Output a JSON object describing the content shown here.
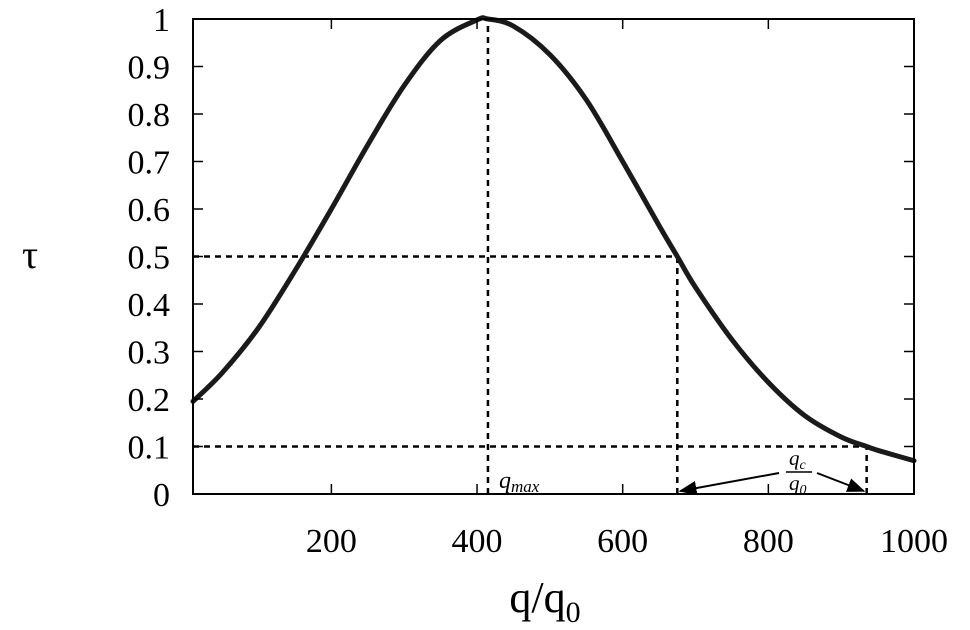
{
  "chart_data": {
    "type": "line",
    "title": "",
    "xlabel": "q/q",
    "xlabel_sub": "0",
    "ylabel": "τ",
    "xlim": [
      10,
      1000
    ],
    "ylim": [
      0,
      1
    ],
    "x_ticks": [
      "200",
      "400",
      "600",
      "800",
      "1000"
    ],
    "y_ticks": [
      "0",
      "0.1",
      "0.2",
      "0.3",
      "0.4",
      "0.5",
      "0.6",
      "0.7",
      "0.8",
      "0.9",
      "1"
    ],
    "grid": false,
    "legend": "none",
    "series": [
      {
        "x": [
          10,
          50,
          100,
          150,
          200,
          250,
          300,
          350,
          400,
          415,
          450,
          500,
          550,
          600,
          650,
          675,
          700,
          750,
          800,
          850,
          900,
          935,
          950,
          1000
        ],
        "y": [
          0.195,
          0.255,
          0.35,
          0.47,
          0.6,
          0.735,
          0.86,
          0.955,
          0.998,
          1.0,
          0.985,
          0.925,
          0.83,
          0.7,
          0.565,
          0.5,
          0.435,
          0.325,
          0.235,
          0.165,
          0.12,
          0.1,
          0.092,
          0.07
        ]
      }
    ],
    "reference_lines": [
      {
        "kind": "vertical",
        "x": 415,
        "y_from": 0,
        "y_to": 1.0
      },
      {
        "kind": "horizontal",
        "y": 0.5,
        "x_from": 10,
        "x_to": 675
      },
      {
        "kind": "vertical",
        "x": 675,
        "y_from": 0,
        "y_to": 0.5
      },
      {
        "kind": "horizontal",
        "y": 0.1,
        "x_from": 10,
        "x_to": 935
      },
      {
        "kind": "vertical",
        "x": 935,
        "y_from": 0,
        "y_to": 0.1
      }
    ],
    "annotations": {
      "qmax_main": "q",
      "qmax_sub": "max",
      "qc_num_main": "q",
      "qc_num_sub": "c",
      "qc_den_main": "q",
      "qc_den_sub": "0"
    },
    "arrow_span": {
      "x_from": 675,
      "x_to": 935,
      "y": 0.0
    }
  }
}
